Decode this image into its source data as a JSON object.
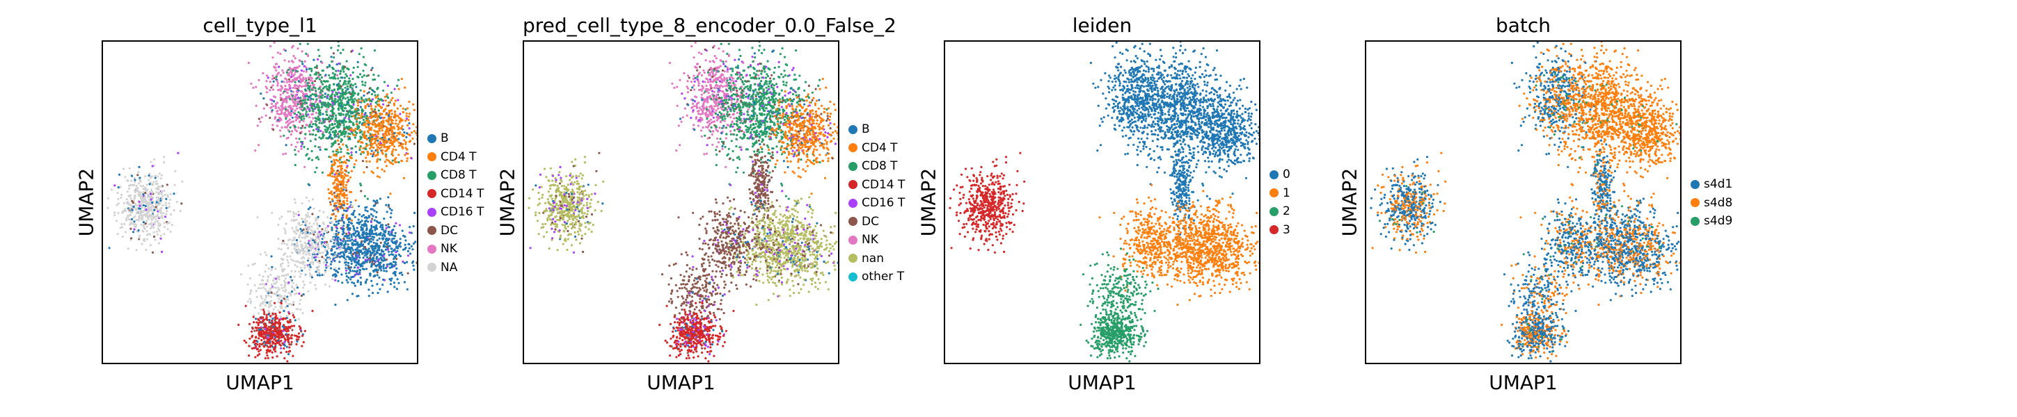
{
  "chart_data": [
    {
      "type": "scatter",
      "title": "cell_type_l1",
      "xlabel": "UMAP1",
      "ylabel": "UMAP2",
      "legend": {
        "placement": "right",
        "entries": [
          {
            "name": "B",
            "color": "#1f77b4"
          },
          {
            "name": "CD4 T",
            "color": "#ff7f0e"
          },
          {
            "name": "CD8 T",
            "color": "#279e68"
          },
          {
            "name": "CD14 T",
            "color": "#d62728"
          },
          {
            "name": "CD16 T",
            "color": "#aa40fc"
          },
          {
            "name": "DC",
            "color": "#8c564b"
          },
          {
            "name": "NK",
            "color": "#e377c2"
          },
          {
            "name": "NA",
            "color": "#d3d3d3"
          }
        ]
      }
    },
    {
      "type": "scatter",
      "title": "pred_cell_type_8_encoder_0.0_False_2",
      "xlabel": "UMAP1",
      "ylabel": "UMAP2",
      "legend": {
        "placement": "right",
        "entries": [
          {
            "name": "B",
            "color": "#1f77b4"
          },
          {
            "name": "CD4 T",
            "color": "#ff7f0e"
          },
          {
            "name": "CD8 T",
            "color": "#279e68"
          },
          {
            "name": "CD14 T",
            "color": "#d62728"
          },
          {
            "name": "CD16 T",
            "color": "#aa40fc"
          },
          {
            "name": "DC",
            "color": "#8c564b"
          },
          {
            "name": "NK",
            "color": "#e377c2"
          },
          {
            "name": "nan",
            "color": "#b5bd61"
          },
          {
            "name": "other T",
            "color": "#17becf"
          }
        ]
      }
    },
    {
      "type": "scatter",
      "title": "leiden",
      "xlabel": "UMAP1",
      "ylabel": "UMAP2",
      "legend": {
        "placement": "right",
        "entries": [
          {
            "name": "0",
            "color": "#1f77b4"
          },
          {
            "name": "1",
            "color": "#ff7f0e"
          },
          {
            "name": "2",
            "color": "#279e68"
          },
          {
            "name": "3",
            "color": "#d62728"
          }
        ]
      }
    },
    {
      "type": "scatter",
      "title": "batch",
      "xlabel": "UMAP1",
      "ylabel": "UMAP2",
      "legend": {
        "placement": "right",
        "entries": [
          {
            "name": "s4d1",
            "color": "#1f77b4"
          },
          {
            "name": "s4d8",
            "color": "#ff7f0e"
          },
          {
            "name": "s4d9",
            "color": "#279e68"
          }
        ]
      }
    }
  ]
}
